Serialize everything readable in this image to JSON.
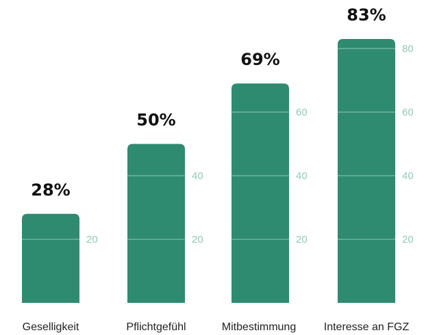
{
  "chart_data": {
    "type": "bar",
    "categories": [
      "Geselligkeit",
      "Pflichtgefühl",
      "Mitbestimmung",
      "Interesse an FGZ"
    ],
    "values": [
      28,
      50,
      69,
      83
    ],
    "value_labels": [
      "28%",
      "50%",
      "69%",
      "83%"
    ],
    "unit": "%",
    "ylim": [
      0,
      100
    ],
    "gridlines": [
      20,
      40,
      60,
      80
    ],
    "gridline_labels": [
      "20",
      "40",
      "60",
      "80"
    ],
    "grid": true,
    "legend": "none",
    "title": "",
    "xlabel": "",
    "ylabel": "",
    "colors": {
      "bar": "#2e8b6f",
      "gridline": "#8fcbb6",
      "tick_text": "#8fcbb6",
      "value_text": "#111111",
      "category_text": "#222222"
    }
  }
}
